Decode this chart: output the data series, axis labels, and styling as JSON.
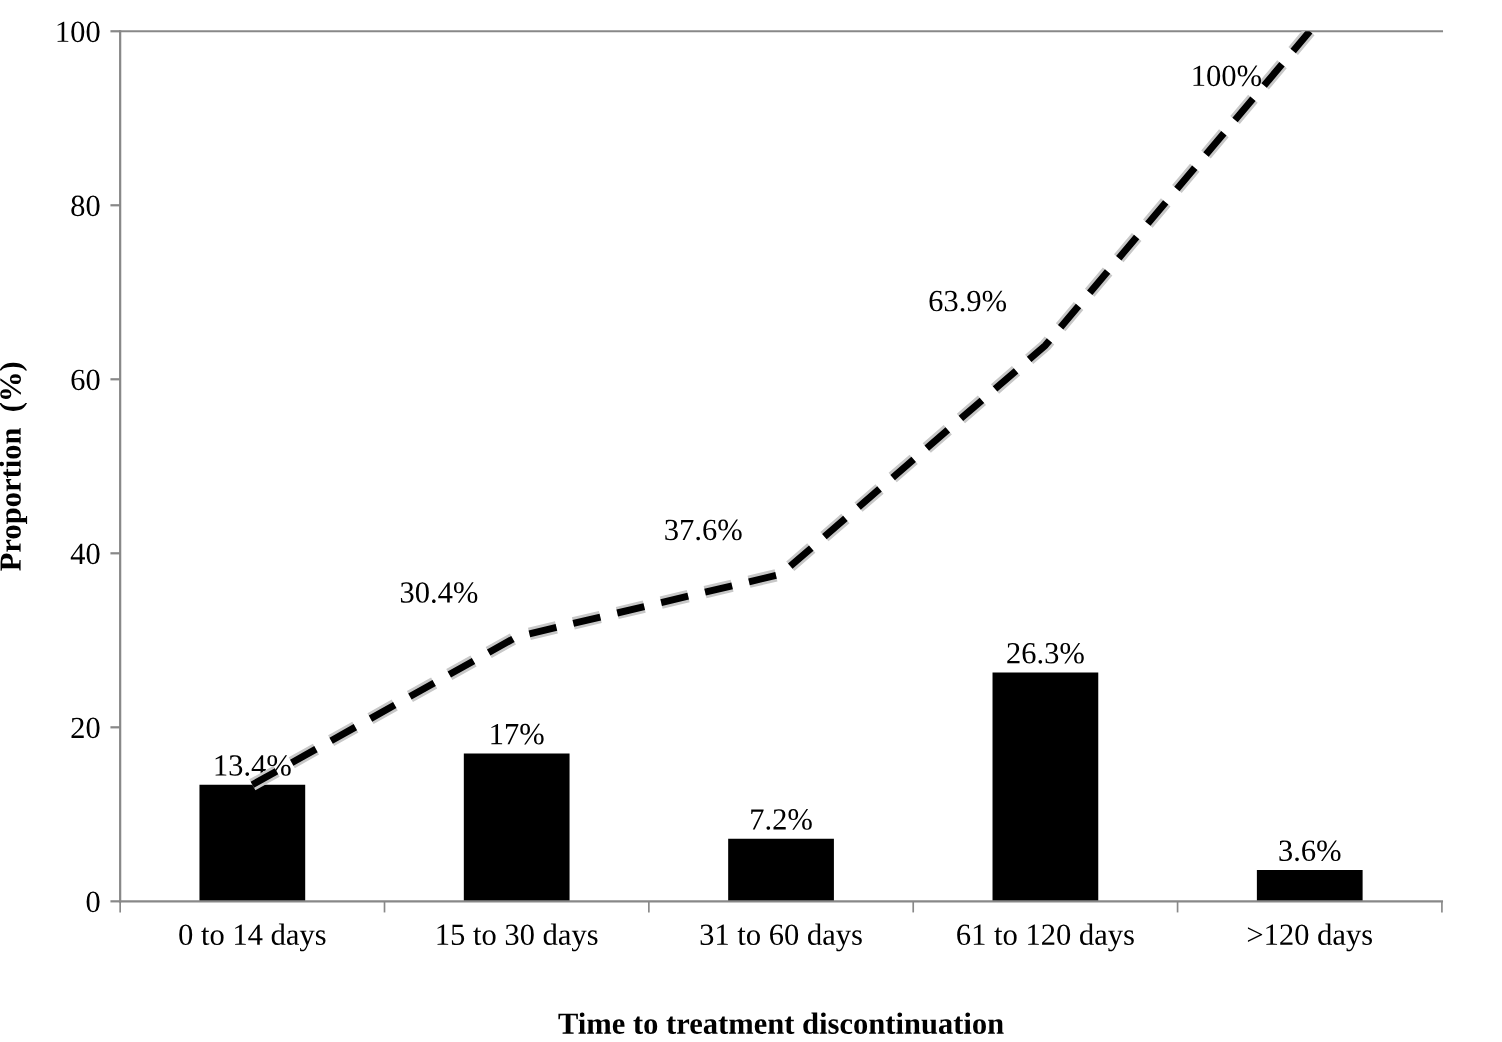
{
  "chart_data": {
    "type": "bar",
    "xlabel": "Time to treatment discontinuation",
    "ylabel": "Proportion  (%)",
    "categories": [
      "0 to 14 days",
      "15 to 30 days",
      "31 to 60 days",
      "61 to 120 days",
      ">120 days"
    ],
    "series": [
      {
        "color": "#000000",
        "values": [
          13.4,
          17,
          7.2,
          26.3,
          3.6
        ],
        "value_labels": [
          "13.4%",
          "17%",
          "7.2%",
          "26.3%",
          "3.6%"
        ]
      },
      {
        "type": "line",
        "color": "#000000",
        "line_style": "dashed",
        "values": [
          13.4,
          30.4,
          37.6,
          63.9,
          100
        ],
        "value_labels": [
          null,
          "30.4%",
          "37.6%",
          "63.9%",
          "100%"
        ]
      }
    ],
    "ylim": [
      0,
      100
    ],
    "yticks": [
      0,
      20,
      40,
      60,
      80,
      100
    ],
    "grid": false,
    "legend": false,
    "marker": "none"
  }
}
